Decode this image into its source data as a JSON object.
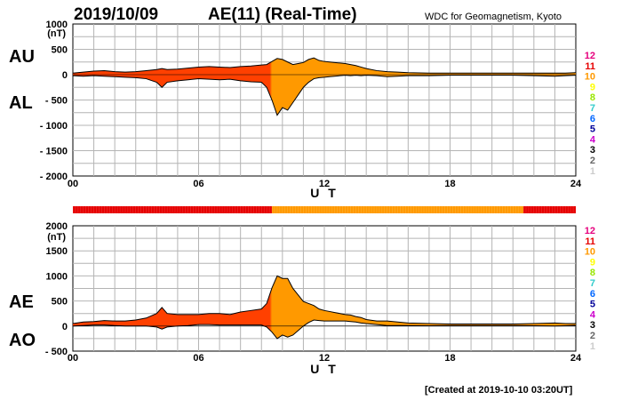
{
  "header": {
    "date": "2019/10/09",
    "title": "AE(11) (Real-Time)",
    "org": "WDC for Geomagnetism, Kyoto"
  },
  "footer": "[Created at 2019-10-10 03:20UT]",
  "legend": {
    "labels": [
      "12",
      "11",
      "10",
      "9",
      "8",
      "7",
      "6",
      "5",
      "4",
      "3",
      "2",
      "1"
    ],
    "colors": [
      "#e6007e",
      "#e60000",
      "#ff9900",
      "#ffff00",
      "#99e600",
      "#33cccc",
      "#0066ff",
      "#000099",
      "#cc00cc",
      "#000000",
      "#666666",
      "#cccccc"
    ]
  },
  "chart_data": [
    {
      "type": "area",
      "name": "AU/AL",
      "labels": {
        "upper": "AU",
        "lower": "AL"
      },
      "unit": "(nT)",
      "xlabel": "U T",
      "xlim": [
        0,
        24
      ],
      "ylim": [
        -2000,
        1000
      ],
      "x_ticks": [
        "00",
        "06",
        "12",
        "18",
        "24"
      ],
      "y_ticks": [
        "1000",
        "500",
        "0",
        "- 500",
        "- 1000",
        "- 1500",
        "- 2000"
      ],
      "grid": true,
      "x": [
        0,
        0.5,
        1,
        1.5,
        2,
        2.5,
        3,
        3.5,
        4,
        4.25,
        4.5,
        5,
        5.5,
        6,
        6.5,
        7,
        7.5,
        8,
        8.5,
        9,
        9.25,
        9.5,
        9.75,
        10,
        10.25,
        10.5,
        10.75,
        11,
        11.25,
        11.5,
        11.75,
        12,
        12.25,
        12.5,
        12.75,
        13,
        13.25,
        13.5,
        13.75,
        14,
        14.5,
        15,
        15.5,
        16,
        17,
        18,
        19,
        20,
        21,
        22,
        23,
        23.5,
        24
      ],
      "upper": [
        30,
        50,
        70,
        80,
        60,
        50,
        60,
        80,
        100,
        120,
        100,
        110,
        130,
        150,
        160,
        150,
        140,
        160,
        170,
        190,
        200,
        260,
        320,
        300,
        250,
        200,
        220,
        240,
        300,
        330,
        280,
        260,
        250,
        240,
        230,
        220,
        200,
        180,
        150,
        120,
        80,
        60,
        50,
        40,
        30,
        30,
        30,
        30,
        30,
        30,
        30,
        30,
        40
      ],
      "lower": [
        -20,
        -30,
        -20,
        -30,
        -40,
        -50,
        -60,
        -80,
        -150,
        -250,
        -150,
        -120,
        -100,
        -80,
        -90,
        -100,
        -90,
        -120,
        -140,
        -150,
        -250,
        -500,
        -800,
        -650,
        -700,
        -550,
        -400,
        -250,
        -150,
        -80,
        -60,
        -50,
        -40,
        -30,
        -20,
        -10,
        -20,
        -10,
        -20,
        -10,
        -20,
        -40,
        -30,
        -20,
        -20,
        -10,
        -10,
        -10,
        -10,
        -20,
        -30,
        -20,
        -10
      ],
      "mark_level_colors": [
        "#ff4000",
        "#ff9900"
      ],
      "level_bar": [
        {
          "from": 0,
          "to": 9.5,
          "level": 11
        },
        {
          "from": 9.5,
          "to": 21.5,
          "level": 10
        },
        {
          "from": 21.5,
          "to": 24,
          "level": 11
        }
      ]
    },
    {
      "type": "area",
      "name": "AE/AO",
      "labels": {
        "upper": "AE",
        "lower": "AO"
      },
      "unit": "(nT)",
      "xlabel": "U T",
      "xlim": [
        0,
        24
      ],
      "ylim": [
        -500,
        2000
      ],
      "x_ticks": [
        "00",
        "06",
        "12",
        "18",
        "24"
      ],
      "y_ticks": [
        "2000",
        "1500",
        "1000",
        "500",
        "0",
        "- 500"
      ],
      "grid": true,
      "x": [
        0,
        0.5,
        1,
        1.5,
        2,
        2.5,
        3,
        3.5,
        4,
        4.25,
        4.5,
        5,
        5.5,
        6,
        6.5,
        7,
        7.5,
        8,
        8.5,
        9,
        9.25,
        9.5,
        9.75,
        10,
        10.25,
        10.5,
        10.75,
        11,
        11.25,
        11.5,
        11.75,
        12,
        12.25,
        12.5,
        12.75,
        13,
        13.25,
        13.5,
        13.75,
        14,
        14.5,
        15,
        15.5,
        16,
        17,
        18,
        19,
        20,
        21,
        22,
        23,
        23.5,
        24
      ],
      "upper": [
        50,
        80,
        90,
        110,
        100,
        100,
        120,
        160,
        250,
        370,
        250,
        230,
        230,
        230,
        250,
        250,
        230,
        280,
        310,
        340,
        450,
        760,
        1000,
        950,
        950,
        750,
        620,
        490,
        450,
        410,
        340,
        310,
        290,
        270,
        250,
        230,
        220,
        190,
        170,
        130,
        100,
        100,
        80,
        60,
        50,
        40,
        40,
        40,
        40,
        50,
        60,
        50,
        50
      ],
      "lower": [
        0,
        10,
        20,
        20,
        10,
        0,
        0,
        0,
        -20,
        -60,
        -20,
        0,
        10,
        30,
        30,
        20,
        20,
        20,
        20,
        20,
        -20,
        -120,
        -250,
        -180,
        -220,
        -180,
        -90,
        0,
        70,
        120,
        110,
        100,
        100,
        100,
        100,
        100,
        90,
        80,
        60,
        50,
        30,
        10,
        10,
        10,
        5,
        10,
        10,
        10,
        10,
        5,
        0,
        5,
        15
      ],
      "mark_level_colors": [
        "#ff4000",
        "#ff9900"
      ]
    }
  ]
}
